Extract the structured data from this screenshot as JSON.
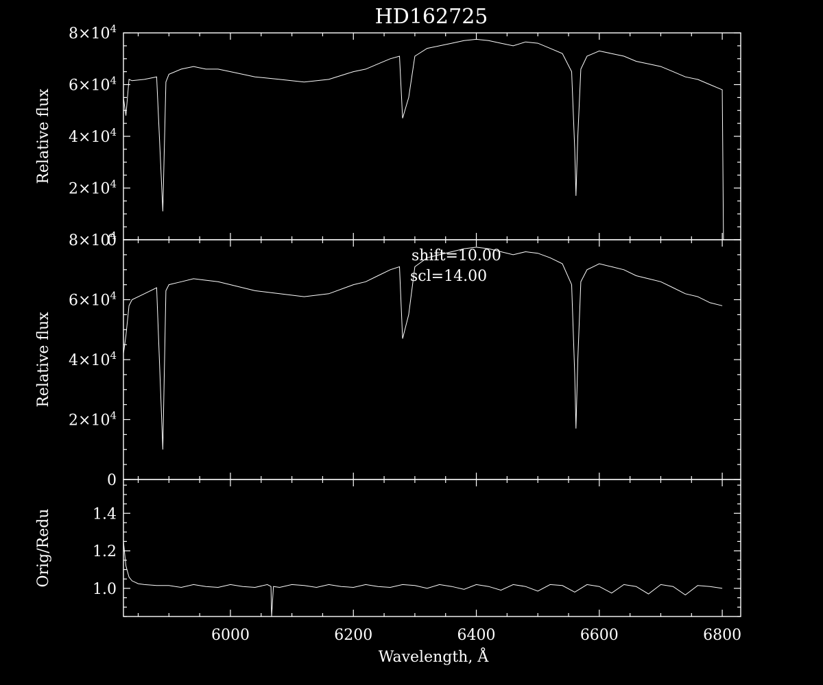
{
  "title": "HD162725",
  "colors": {
    "background": "#000000",
    "foreground": "#ffffff"
  },
  "xlabel": "Wavelength, Å",
  "annotation_lines": [
    "shift=10.00",
    "scl=14.00"
  ],
  "chart_data": [
    {
      "type": "line",
      "panel": "top",
      "title": "HD162725",
      "xlabel": "",
      "ylabel": "Relative flux",
      "xlim": [
        5826,
        6830
      ],
      "ylim": [
        0,
        80000
      ],
      "x_ticks": [
        6000,
        6200,
        6400,
        6600,
        6800
      ],
      "y_tick_labels": [
        {
          "value": 0,
          "label": "0"
        },
        {
          "value": 20000,
          "label": "2×10^4"
        },
        {
          "value": 40000,
          "label": "4×10^4"
        },
        {
          "value": 60000,
          "label": "6×10^4"
        },
        {
          "value": 80000,
          "label": "8×10^4"
        }
      ],
      "series": [
        {
          "x": [
            5826,
            5830,
            5835,
            5840,
            5860,
            5880,
            5890,
            5895,
            5900,
            5920,
            5940,
            5960,
            5980,
            6000,
            6040,
            6080,
            6120,
            6160,
            6200,
            6220,
            6240,
            6260,
            6275,
            6280,
            6290,
            6300,
            6320,
            6340,
            6360,
            6380,
            6400,
            6420,
            6440,
            6460,
            6480,
            6500,
            6520,
            6540,
            6555,
            6560,
            6562,
            6565,
            6570,
            6580,
            6590,
            6600,
            6620,
            6640,
            6660,
            6680,
            6700,
            6720,
            6740,
            6760,
            6780,
            6800,
            6801,
            6802
          ],
          "y": [
            55000,
            48000,
            62000,
            61500,
            62000,
            63000,
            11000,
            61000,
            64000,
            66000,
            67000,
            66000,
            66000,
            65000,
            63000,
            62000,
            61000,
            62000,
            65000,
            66000,
            68000,
            70000,
            71000,
            47000,
            55000,
            71000,
            74000,
            75000,
            76000,
            77000,
            77500,
            77000,
            76000,
            75000,
            76500,
            76000,
            74000,
            72000,
            65000,
            35000,
            17000,
            40000,
            66000,
            71000,
            72000,
            73000,
            72000,
            71000,
            69000,
            68000,
            67000,
            65000,
            63000,
            62000,
            60000,
            58000,
            30000,
            0
          ]
        }
      ]
    },
    {
      "type": "line",
      "panel": "middle",
      "xlabel": "",
      "ylabel": "Relative flux",
      "xlim": [
        5826,
        6830
      ],
      "ylim": [
        0,
        80000
      ],
      "x_ticks": [
        6000,
        6200,
        6400,
        6600,
        6800
      ],
      "y_tick_labels": [
        {
          "value": 0,
          "label": "0"
        },
        {
          "value": 20000,
          "label": "2×10^4"
        },
        {
          "value": 40000,
          "label": "4×10^4"
        },
        {
          "value": 60000,
          "label": "6×10^4"
        },
        {
          "value": 80000,
          "label": "8×10^4"
        }
      ],
      "series": [
        {
          "x": [
            5826,
            5830,
            5835,
            5840,
            5860,
            5880,
            5890,
            5895,
            5900,
            5920,
            5940,
            5960,
            5980,
            6000,
            6040,
            6080,
            6120,
            6160,
            6200,
            6220,
            6240,
            6260,
            6275,
            6280,
            6290,
            6300,
            6320,
            6340,
            6360,
            6380,
            6400,
            6420,
            6440,
            6460,
            6480,
            6500,
            6520,
            6540,
            6555,
            6560,
            6562,
            6565,
            6570,
            6580,
            6590,
            6600,
            6620,
            6640,
            6660,
            6680,
            6700,
            6720,
            6740,
            6760,
            6780,
            6800
          ],
          "y": [
            42000,
            48000,
            58000,
            60000,
            62000,
            64000,
            10000,
            63000,
            65000,
            66000,
            67000,
            66500,
            66000,
            65000,
            63000,
            62000,
            61000,
            62000,
            65000,
            66000,
            68000,
            70000,
            71000,
            47000,
            55000,
            71000,
            74000,
            75000,
            76000,
            77000,
            77500,
            77000,
            76000,
            75000,
            76000,
            75500,
            74000,
            72000,
            65000,
            35000,
            17000,
            40000,
            66000,
            70000,
            71000,
            72000,
            71000,
            70000,
            68000,
            67000,
            66000,
            64000,
            62000,
            61000,
            59000,
            58000
          ]
        }
      ]
    },
    {
      "type": "line",
      "panel": "bottom",
      "xlabel": "Wavelength, Å",
      "ylabel": "Orig/Redu",
      "xlim": [
        5826,
        6830
      ],
      "ylim": [
        0.85,
        1.58
      ],
      "x_ticks": [
        6000,
        6200,
        6400,
        6600,
        6800
      ],
      "y_tick_labels": [
        {
          "value": 1.0,
          "label": "1.0"
        },
        {
          "value": 1.2,
          "label": "1.2"
        },
        {
          "value": 1.4,
          "label": "1.4"
        }
      ],
      "series": [
        {
          "x": [
            5826,
            5830,
            5835,
            5840,
            5850,
            5860,
            5880,
            5900,
            5920,
            5940,
            5960,
            5980,
            6000,
            6020,
            6040,
            6060,
            6066,
            6067,
            6070,
            6080,
            6100,
            6120,
            6140,
            6160,
            6180,
            6200,
            6220,
            6240,
            6260,
            6280,
            6300,
            6320,
            6340,
            6360,
            6380,
            6400,
            6420,
            6440,
            6460,
            6480,
            6500,
            6520,
            6540,
            6560,
            6580,
            6600,
            6620,
            6640,
            6660,
            6680,
            6700,
            6720,
            6740,
            6760,
            6780,
            6800
          ],
          "y": [
            1.25,
            1.12,
            1.06,
            1.04,
            1.025,
            1.02,
            1.015,
            1.015,
            1.005,
            1.02,
            1.01,
            1.005,
            1.02,
            1.01,
            1.005,
            1.02,
            1.01,
            0.85,
            1.01,
            1.005,
            1.02,
            1.015,
            1.005,
            1.02,
            1.01,
            1.005,
            1.02,
            1.01,
            1.005,
            1.02,
            1.015,
            1.0,
            1.02,
            1.01,
            0.995,
            1.02,
            1.01,
            0.99,
            1.02,
            1.01,
            0.985,
            1.02,
            1.015,
            0.98,
            1.02,
            1.01,
            0.975,
            1.02,
            1.01,
            0.97,
            1.02,
            1.01,
            0.965,
            1.015,
            1.01,
            1.0
          ]
        }
      ]
    }
  ]
}
